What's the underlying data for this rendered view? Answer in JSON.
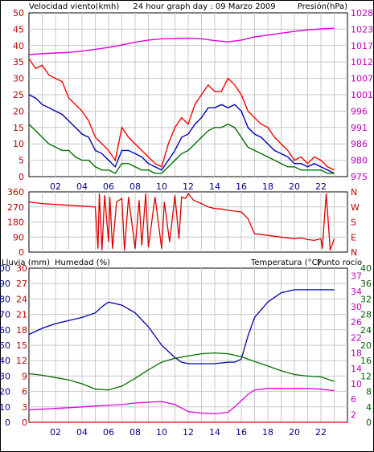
{
  "colors": {
    "wind": "#ff0000",
    "gust": "#d00000",
    "avgwind": "#0000c0",
    "pressure": "#e000e0",
    "winddir": "#e00000",
    "rain": "#e00000",
    "humidity": "#0000b0",
    "temperature": "#007000",
    "dewpoint": "#e000e0",
    "grid": "#c8c8c8",
    "tickred": "#c00000",
    "tickblue": "#00008b",
    "tickgreen": "#006400",
    "tickmagenta": "#c000c0"
  },
  "chart_data": [
    {
      "id": "wind",
      "type": "line",
      "title": "24 hour graph day : 09 Marzo 2009",
      "ylabel_left": "Velocidad viento(kmh)",
      "ylabel_right": "Presión(hPa)",
      "x_ticks": [
        "02",
        "04",
        "06",
        "08",
        "10",
        "12",
        "14",
        "16",
        "18",
        "20",
        "22"
      ],
      "xlim": [
        0,
        24
      ],
      "ylim_left": [
        0,
        50
      ],
      "yticks_left": [
        "0",
        "5",
        "10",
        "15",
        "20",
        "25",
        "30",
        "35",
        "40",
        "45",
        "50"
      ],
      "ylim_right": [
        975,
        1028
      ],
      "yticks_right": [
        "975",
        "980",
        "986",
        "991",
        "996",
        "1001",
        "1007",
        "1012",
        "1017",
        "1023",
        "1028"
      ],
      "grid": true,
      "series": [
        {
          "key": "gust",
          "x": [
            0,
            0.5,
            1,
            1.5,
            2,
            2.5,
            3,
            3.5,
            4,
            4.5,
            5,
            5.5,
            6,
            6.5,
            7,
            7.5,
            8,
            8.5,
            9,
            9.5,
            10,
            10.5,
            11,
            11.5,
            12,
            12.5,
            13,
            13.5,
            14,
            14.5,
            15,
            15.5,
            16,
            16.5,
            17,
            17.5,
            18,
            18.5,
            19,
            19.5,
            20,
            20.5,
            21,
            21.5,
            22,
            22.5,
            23
          ],
          "values": [
            36,
            33,
            34,
            31,
            30,
            29,
            24,
            22,
            20,
            17,
            12,
            10,
            8,
            5,
            15,
            12,
            10,
            8,
            6,
            4,
            3,
            10,
            15,
            18,
            16,
            22,
            25,
            28,
            26,
            26,
            30,
            28,
            25,
            20,
            18,
            16,
            15,
            12,
            10,
            8,
            5,
            6,
            4,
            6,
            5,
            3,
            2
          ]
        },
        {
          "key": "avgwind",
          "x": [
            0,
            0.5,
            1,
            1.5,
            2,
            2.5,
            3,
            3.5,
            4,
            4.5,
            5,
            5.5,
            6,
            6.5,
            7,
            7.5,
            8,
            8.5,
            9,
            9.5,
            10,
            10.5,
            11,
            11.5,
            12,
            12.5,
            13,
            13.5,
            14,
            14.5,
            15,
            15.5,
            16,
            16.5,
            17,
            17.5,
            18,
            18.5,
            19,
            19.5,
            20,
            20.5,
            21,
            21.5,
            22,
            22.5,
            23
          ],
          "values": [
            25,
            24,
            22,
            21,
            20,
            19,
            17,
            15,
            13,
            12,
            8,
            7,
            5,
            3,
            8,
            8,
            7,
            6,
            4,
            3,
            2,
            5,
            8,
            12,
            13,
            16,
            18,
            21,
            21,
            22,
            21,
            22,
            20,
            15,
            13,
            12,
            10,
            8,
            7,
            6,
            4,
            4,
            3,
            4,
            3,
            2,
            1
          ]
        },
        {
          "key": "wind",
          "x": [
            0,
            0.5,
            1,
            1.5,
            2,
            2.5,
            3,
            3.5,
            4,
            4.5,
            5,
            5.5,
            6,
            6.5,
            7,
            7.5,
            8,
            8.5,
            9,
            9.5,
            10,
            10.5,
            11,
            11.5,
            12,
            12.5,
            13,
            13.5,
            14,
            14.5,
            15,
            15.5,
            16,
            16.5,
            17,
            17.5,
            18,
            18.5,
            19,
            19.5,
            20,
            20.5,
            21,
            21.5,
            22,
            22.5,
            23
          ],
          "values": [
            16,
            14,
            12,
            10,
            9,
            8,
            8,
            6,
            5,
            5,
            3,
            2,
            2,
            1,
            4,
            4,
            3,
            2,
            2,
            1,
            1,
            3,
            5,
            7,
            8,
            10,
            12,
            14,
            15,
            15,
            16,
            15,
            12,
            9,
            8,
            7,
            6,
            5,
            4,
            3,
            3,
            2,
            2,
            2,
            2,
            1,
            1
          ]
        },
        {
          "key": "pressure",
          "axis": "right",
          "x": [
            0,
            1,
            2,
            3,
            4,
            5,
            6,
            7,
            8,
            9,
            10,
            11,
            12,
            13,
            14,
            15,
            16,
            17,
            18,
            19,
            20,
            21,
            22,
            23
          ],
          "values": [
            1014.5,
            1014.8,
            1015.0,
            1015.2,
            1015.6,
            1016.2,
            1016.8,
            1017.6,
            1018.5,
            1019.2,
            1019.6,
            1019.7,
            1019.8,
            1019.6,
            1019.0,
            1018.6,
            1019.2,
            1020.2,
            1020.8,
            1021.4,
            1022.0,
            1022.5,
            1022.8,
            1023.0
          ]
        }
      ]
    },
    {
      "id": "winddir",
      "type": "line",
      "x_ticks": [
        "02",
        "04",
        "06",
        "08",
        "10",
        "12",
        "14",
        "16",
        "18",
        "20",
        "22"
      ],
      "xlim": [
        0,
        24
      ],
      "ylim_left": [
        0,
        360
      ],
      "yticks_left": [
        "0",
        "90",
        "180",
        "270",
        "360"
      ],
      "labels_right": [
        "N",
        "W",
        "S",
        "E",
        "N"
      ],
      "grid": true,
      "series": [
        {
          "key": "winddir",
          "x": [
            0,
            1,
            2,
            3,
            4,
            5,
            5.2,
            5.3,
            5.5,
            5.7,
            6,
            6.1,
            6.3,
            6.6,
            7,
            7.2,
            7.5,
            8,
            8.3,
            8.5,
            8.8,
            9,
            9.5,
            10,
            10.2,
            10.6,
            11,
            11.3,
            11.5,
            11.8,
            12,
            12.4,
            13,
            13.5,
            14,
            14.5,
            15,
            15.5,
            16,
            16.5,
            17,
            18,
            19,
            20,
            20.5,
            21,
            21.5,
            22,
            22.1,
            22.4,
            22.7,
            23
          ],
          "values": [
            300,
            290,
            285,
            280,
            275,
            270,
            20,
            350,
            10,
            340,
            60,
            330,
            20,
            300,
            320,
            10,
            330,
            20,
            310,
            40,
            350,
            30,
            330,
            20,
            300,
            60,
            340,
            80,
            330,
            320,
            350,
            310,
            290,
            270,
            260,
            258,
            250,
            245,
            240,
            200,
            110,
            100,
            90,
            80,
            85,
            75,
            70,
            80,
            20,
            350,
            10,
            80
          ]
        }
      ]
    },
    {
      "id": "thermo",
      "type": "line",
      "ylabel_left": "Lluvia (mm)",
      "ylabel_left2": "Humedad (%)",
      "ylabel_right": "Temperatura (°C)",
      "ylabel_right2": "Punto rocío",
      "x_ticks": [
        "02",
        "04",
        "06",
        "08",
        "10",
        "12",
        "14",
        "16",
        "18",
        "20",
        "22"
      ],
      "xlim": [
        0,
        24
      ],
      "ylim_rain": [
        0,
        30
      ],
      "yticks_rain": [
        "0",
        "3",
        "6",
        "9",
        "12",
        "15",
        "18",
        "21",
        "24",
        "27",
        "30"
      ],
      "ylim_humidity": [
        0,
        100
      ],
      "yticks_humidity": [
        "0",
        "10",
        "20",
        "30",
        "40",
        "50",
        "60",
        "70",
        "80",
        "90",
        "100"
      ],
      "ylim_temp": [
        0,
        40
      ],
      "yticks_temp": [
        "0",
        "4",
        "8",
        "12",
        "16",
        "20",
        "24",
        "28",
        "32",
        "36",
        "40"
      ],
      "yticks_dew": [
        "2",
        "6",
        "10",
        "14",
        "18",
        "22",
        "26",
        "30",
        "34",
        "37"
      ],
      "grid": true,
      "series": [
        {
          "key": "humidity",
          "axis": "humidity",
          "x": [
            0,
            1,
            2,
            3,
            4,
            5,
            5.5,
            6,
            7,
            8,
            9,
            10,
            11,
            11.5,
            12,
            13,
            14,
            15,
            15.5,
            16,
            16.5,
            17,
            18,
            19,
            20,
            21,
            22,
            23
          ],
          "values": [
            57,
            61,
            64,
            66,
            68,
            71,
            75,
            78,
            76,
            71,
            62,
            50,
            42,
            39,
            38,
            38,
            38,
            39,
            39,
            41,
            56,
            68,
            78,
            84,
            86,
            86,
            86,
            86
          ]
        },
        {
          "key": "temperature",
          "axis": "temp",
          "x": [
            0,
            1,
            2,
            3,
            4,
            5,
            6,
            7,
            8,
            9,
            10,
            11,
            12,
            13,
            14,
            15,
            16,
            17,
            18,
            19,
            20,
            21,
            22,
            23
          ],
          "values": [
            12.6,
            12.2,
            11.6,
            11.0,
            10.0,
            8.6,
            8.4,
            9.4,
            11.4,
            13.6,
            15.6,
            16.6,
            17.2,
            17.8,
            18.0,
            17.8,
            17.0,
            15.8,
            14.6,
            13.4,
            12.4,
            12.0,
            11.8,
            10.6
          ]
        },
        {
          "key": "dewpoint",
          "axis": "temp",
          "x": [
            0,
            1,
            2,
            3,
            4,
            5,
            6,
            7,
            8,
            9,
            10,
            11,
            12,
            13,
            14,
            15,
            15.5,
            16,
            16.5,
            17,
            18,
            19,
            20,
            21,
            22,
            23
          ],
          "values": [
            3.2,
            3.4,
            3.6,
            3.8,
            4.0,
            4.2,
            4.4,
            4.6,
            5.0,
            5.2,
            5.4,
            4.6,
            2.8,
            2.4,
            2.2,
            2.6,
            4.0,
            5.6,
            7.2,
            8.4,
            8.8,
            8.8,
            8.8,
            8.8,
            8.6,
            8.2
          ]
        },
        {
          "key": "rain",
          "axis": "rain",
          "x": [
            0,
            24
          ],
          "values": [
            0,
            0
          ]
        }
      ]
    }
  ]
}
